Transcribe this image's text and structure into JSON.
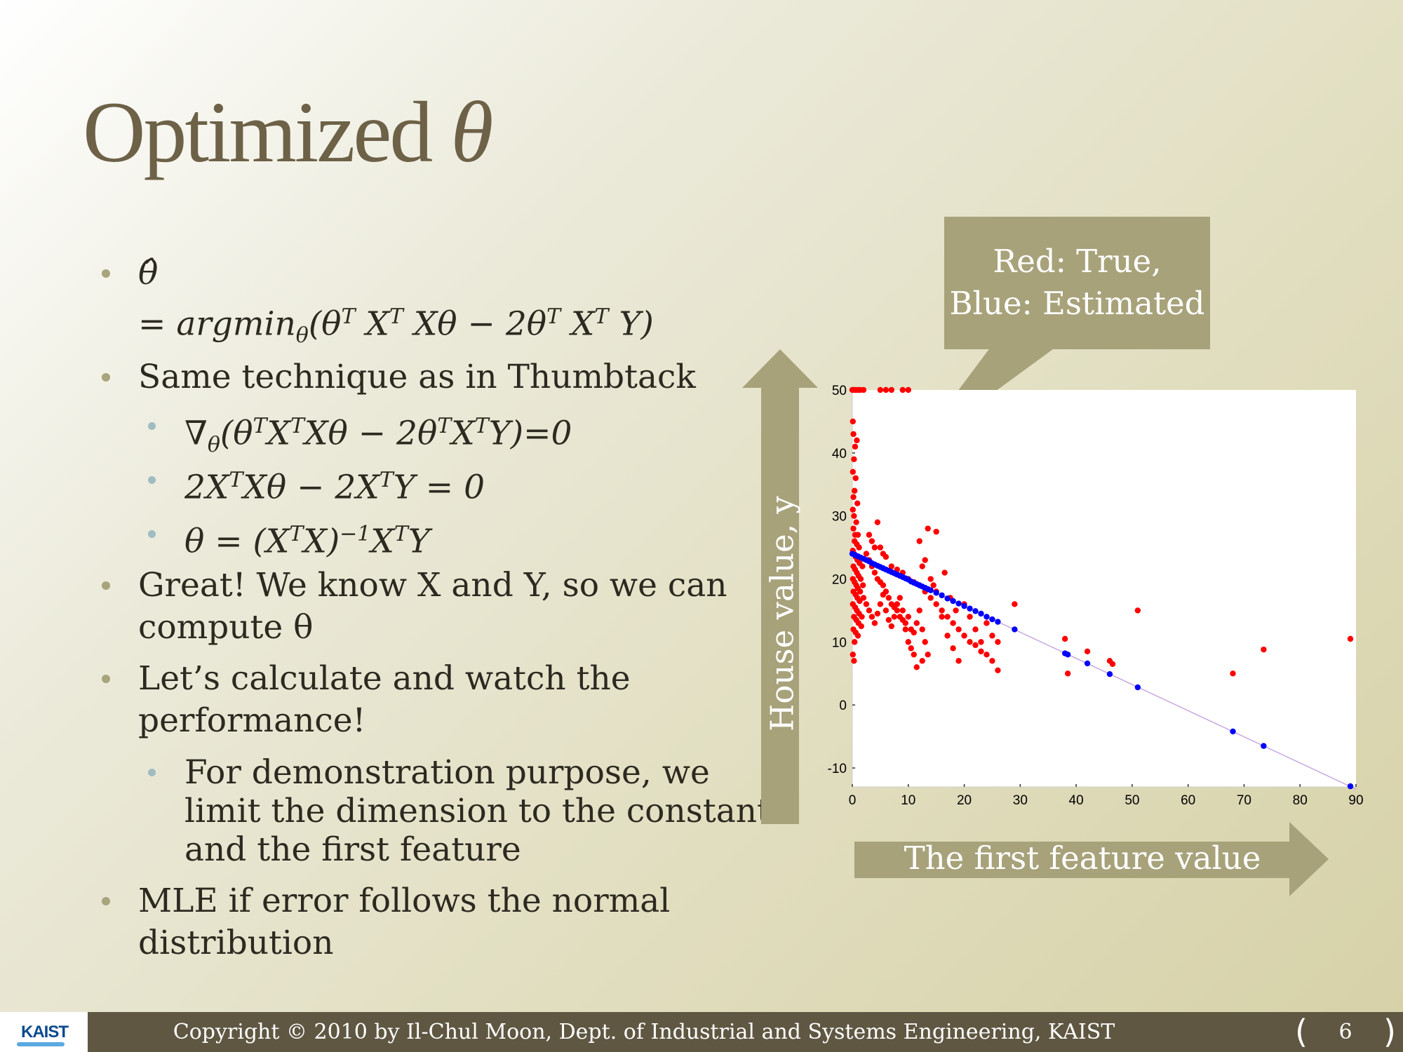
{
  "slide": {
    "title_text": "Optimized ",
    "title_symbol": "θ"
  },
  "bullets": [
    {
      "level": 1,
      "lines": [
        "θ̂"
      ]
    },
    {
      "level": 1,
      "lines": [
        "= argmin_θ(θ^T X^T Xθ − 2θ^T X^T Y)"
      ]
    },
    {
      "level": 1,
      "lines": [
        "Same technique as in Thumbtack"
      ]
    },
    {
      "level": 2,
      "lines": [
        "∇_θ(θ^T X^T Xθ − 2θ^T X^T Y)=0"
      ]
    },
    {
      "level": 2,
      "lines": [
        "2X^T Xθ − 2X^T Y = 0"
      ]
    },
    {
      "level": 2,
      "lines": [
        "θ = (X^T X)^−1 X^T Y"
      ]
    },
    {
      "level": 1,
      "lines": [
        "Great! We know X and Y, so we can",
        "compute θ"
      ]
    },
    {
      "level": 1,
      "lines": [
        "Let’s calculate and watch the",
        "performance!"
      ]
    },
    {
      "level": 2,
      "lines": [
        "For demonstration purpose, we",
        "limit the dimension to the constant",
        "and the first feature"
      ]
    },
    {
      "level": 1,
      "lines": [
        "MLE if error follows the normal",
        "distribution"
      ]
    }
  ],
  "math": {
    "theta_hat": "θ̂",
    "argmin_eq": "= argmin",
    "argmin_sub": "θ",
    "argmin_body": "(θ",
    "grad": "∇",
    "grad_sub": "θ",
    "sup_T": "T",
    "sup_minus1": "−1"
  },
  "callout": {
    "line1": "Red: True,",
    "line2": "Blue: Estimated"
  },
  "y_arrow_label": "House value, y",
  "x_arrow_label": "The first feature value",
  "footer": {
    "logo": "KAIST",
    "copyright": "Copyright © 2010 by Il-Chul Moon, Dept. of Industrial and Systems Engineering, KAIST",
    "page_number": "6"
  },
  "colors": {
    "true_points": "#ff0000",
    "estimated_points": "#0000ff",
    "fit_line": "#c8a8e0",
    "accent_olive": "#a7a27a",
    "title": "#6d6147"
  },
  "chart_data": {
    "type": "scatter",
    "title": "",
    "xlabel": "The first feature value",
    "ylabel": "House value, y",
    "xlim": [
      0,
      90
    ],
    "ylim": [
      -13,
      50
    ],
    "xticks": [
      0,
      10,
      20,
      30,
      40,
      50,
      60,
      70,
      80,
      90
    ],
    "yticks": [
      -10,
      0,
      10,
      20,
      30,
      40,
      50
    ],
    "grid": false,
    "estimate_line": {
      "intercept": 24.0,
      "slope": -0.415
    },
    "series": [
      {
        "points": [
          [
            0.0,
            50
          ],
          [
            0.3,
            50
          ],
          [
            0.6,
            50
          ],
          [
            1,
            50
          ],
          [
            1.4,
            50
          ],
          [
            2,
            50
          ],
          [
            5,
            50
          ],
          [
            6,
            50
          ],
          [
            7,
            50
          ],
          [
            9,
            50
          ],
          [
            10,
            50
          ],
          [
            0.1,
            45
          ],
          [
            0.2,
            43
          ],
          [
            0.5,
            41
          ],
          [
            0.8,
            42
          ],
          [
            0.3,
            39
          ],
          [
            0.1,
            37
          ],
          [
            0.6,
            36
          ],
          [
            0.4,
            34
          ],
          [
            0.2,
            33
          ],
          [
            0.9,
            32
          ],
          [
            0.1,
            31
          ],
          [
            0.3,
            30
          ],
          [
            0.7,
            29
          ],
          [
            0.2,
            28
          ],
          [
            0.5,
            27
          ],
          [
            1.0,
            27
          ],
          [
            0.4,
            26
          ],
          [
            0.8,
            25.5
          ],
          [
            1.2,
            25
          ],
          [
            0.1,
            24.5
          ],
          [
            0.3,
            24
          ],
          [
            0.6,
            23.5
          ],
          [
            0.9,
            23
          ],
          [
            1.3,
            22.5
          ],
          [
            1.8,
            22
          ],
          [
            0.2,
            22
          ],
          [
            0.5,
            21.5
          ],
          [
            0.8,
            21
          ],
          [
            1.1,
            20.5
          ],
          [
            1.5,
            20
          ],
          [
            0.1,
            20
          ],
          [
            0.4,
            19.5
          ],
          [
            0.7,
            19
          ],
          [
            1.0,
            18.5
          ],
          [
            1.4,
            18
          ],
          [
            1.9,
            19
          ],
          [
            0.2,
            18
          ],
          [
            0.6,
            17.5
          ],
          [
            0.9,
            17
          ],
          [
            1.3,
            16.5
          ],
          [
            0.1,
            16
          ],
          [
            0.5,
            15.5
          ],
          [
            0.8,
            15
          ],
          [
            1.2,
            14.5
          ],
          [
            1.7,
            14
          ],
          [
            0.3,
            14
          ],
          [
            0.7,
            13.5
          ],
          [
            1.1,
            13
          ],
          [
            1.6,
            12.5
          ],
          [
            0.2,
            12
          ],
          [
            0.6,
            11.5
          ],
          [
            1.0,
            11
          ],
          [
            0.4,
            10
          ],
          [
            0.1,
            8
          ],
          [
            0.3,
            7
          ],
          [
            2.5,
            24
          ],
          [
            3,
            23
          ],
          [
            3.5,
            22
          ],
          [
            4,
            21
          ],
          [
            4.5,
            20
          ],
          [
            5,
            19.5
          ],
          [
            5.5,
            19
          ],
          [
            6,
            18
          ],
          [
            6.5,
            17
          ],
          [
            7,
            16
          ],
          [
            7.5,
            15.5
          ],
          [
            8,
            15
          ],
          [
            8.5,
            14
          ],
          [
            9,
            13.5
          ],
          [
            9.5,
            13
          ],
          [
            10,
            14
          ],
          [
            10.5,
            12
          ],
          [
            11,
            11.5
          ],
          [
            11.5,
            13
          ],
          [
            12,
            15
          ],
          [
            12.5,
            12
          ],
          [
            13,
            10
          ],
          [
            2,
            17
          ],
          [
            2.5,
            16
          ],
          [
            3,
            15
          ],
          [
            3.5,
            14
          ],
          [
            4,
            13
          ],
          [
            4.5,
            14.5
          ],
          [
            5,
            16
          ],
          [
            5.5,
            17.5
          ],
          [
            6,
            15
          ],
          [
            6.5,
            13.5
          ],
          [
            7,
            12.5
          ],
          [
            7.5,
            14
          ],
          [
            8,
            16
          ],
          [
            8.5,
            17
          ],
          [
            9,
            15
          ],
          [
            9.5,
            12
          ],
          [
            10,
            10
          ],
          [
            10.5,
            9
          ],
          [
            11,
            8
          ],
          [
            4.5,
            29
          ],
          [
            3,
            27
          ],
          [
            3.5,
            26
          ],
          [
            4,
            25
          ],
          [
            5,
            25
          ],
          [
            5.5,
            24
          ],
          [
            6,
            23.5
          ],
          [
            7,
            22
          ],
          [
            8,
            21.5
          ],
          [
            9,
            21
          ],
          [
            10,
            20
          ],
          [
            11,
            19.5
          ],
          [
            12,
            19
          ],
          [
            13,
            18
          ],
          [
            14,
            17
          ],
          [
            15,
            16
          ],
          [
            16,
            15
          ],
          [
            17,
            14
          ],
          [
            18,
            13
          ],
          [
            19,
            12
          ],
          [
            20,
            11
          ],
          [
            21,
            10
          ],
          [
            22,
            9.5
          ],
          [
            23,
            8.5
          ],
          [
            24,
            8
          ],
          [
            25,
            7
          ],
          [
            26,
            5.5
          ],
          [
            12,
            26
          ],
          [
            13,
            23
          ],
          [
            14,
            20
          ],
          [
            15,
            18
          ],
          [
            16,
            14
          ],
          [
            17,
            11
          ],
          [
            18,
            9
          ],
          [
            19,
            7
          ],
          [
            20,
            16
          ],
          [
            21,
            14
          ],
          [
            22,
            12
          ],
          [
            23,
            10
          ],
          [
            24,
            13
          ],
          [
            25,
            11
          ],
          [
            26,
            10
          ],
          [
            13.5,
            28
          ],
          [
            15,
            27.5
          ],
          [
            12.5,
            22
          ],
          [
            14.5,
            19
          ],
          [
            16.5,
            21
          ],
          [
            17.5,
            17
          ],
          [
            18.5,
            15
          ],
          [
            11.5,
            6
          ],
          [
            12.5,
            7
          ],
          [
            13.5,
            8
          ],
          [
            29,
            16
          ],
          [
            38,
            10.5
          ],
          [
            38.5,
            5
          ],
          [
            42,
            8.5
          ],
          [
            46,
            7
          ],
          [
            46.5,
            6.5
          ],
          [
            51,
            15
          ],
          [
            68,
            5
          ],
          [
            73.5,
            8.8
          ],
          [
            89,
            10.5
          ]
        ]
      },
      {
        "points": [
          [
            0,
            24
          ],
          [
            0.5,
            23.8
          ],
          [
            1,
            23.6
          ],
          [
            1.5,
            23.4
          ],
          [
            2,
            23.2
          ],
          [
            2.5,
            23
          ],
          [
            3,
            22.8
          ],
          [
            3.5,
            22.5
          ],
          [
            4,
            22.3
          ],
          [
            4.5,
            22.1
          ],
          [
            5,
            21.9
          ],
          [
            5.5,
            21.7
          ],
          [
            6,
            21.5
          ],
          [
            6.5,
            21.3
          ],
          [
            7,
            21.1
          ],
          [
            7.5,
            20.9
          ],
          [
            8,
            20.7
          ],
          [
            8.5,
            20.5
          ],
          [
            9,
            20.3
          ],
          [
            9.5,
            20.1
          ],
          [
            10,
            19.9
          ],
          [
            10.5,
            19.6
          ],
          [
            11,
            19.4
          ],
          [
            11.5,
            19.2
          ],
          [
            12,
            19
          ],
          [
            12.5,
            18.8
          ],
          [
            13,
            18.6
          ],
          [
            13.5,
            18.4
          ],
          [
            14,
            18.2
          ],
          [
            15,
            17.8
          ],
          [
            16,
            17.4
          ],
          [
            17,
            16.9
          ],
          [
            18,
            16.5
          ],
          [
            19,
            16.1
          ],
          [
            20,
            15.7
          ],
          [
            21,
            15.3
          ],
          [
            22,
            14.9
          ],
          [
            23,
            14.5
          ],
          [
            24,
            14
          ],
          [
            25,
            13.6
          ],
          [
            26,
            13.2
          ],
          [
            29,
            12
          ],
          [
            38,
            8.2
          ],
          [
            38.5,
            8
          ],
          [
            42,
            6.6
          ],
          [
            46,
            4.9
          ],
          [
            51,
            2.8
          ],
          [
            68,
            -4.2
          ],
          [
            73.5,
            -6.5
          ],
          [
            89,
            -12.9
          ]
        ]
      }
    ]
  }
}
